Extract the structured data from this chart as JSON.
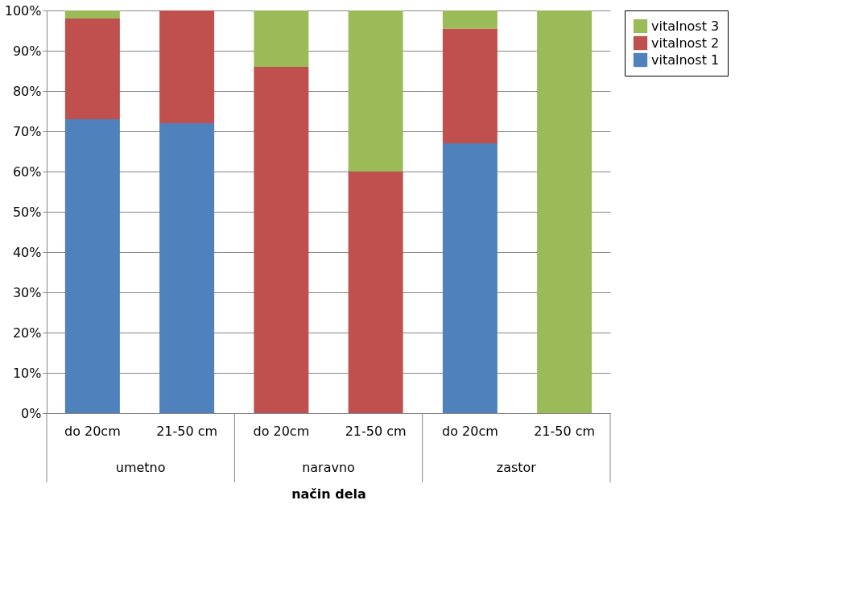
{
  "chart_data": {
    "type": "bar",
    "stacked": true,
    "xlabel": "način dela",
    "categories": [
      "do 20cm",
      "21-50 cm",
      "do 20cm",
      "21-50 cm",
      "do 20cm",
      "21-50 cm"
    ],
    "annotations": [
      "umetno",
      "naravno",
      "zastor"
    ],
    "series": [
      {
        "name": "vitalnost 1",
        "color": "#4f81bd",
        "values": [
          73,
          72,
          0,
          0,
          67,
          0
        ]
      },
      {
        "name": "vitalnost 2",
        "color": "#c0504d",
        "values": [
          25,
          28,
          86,
          60,
          28.5,
          0
        ]
      },
      {
        "name": "vitalnost 3",
        "color": "#9bbb59",
        "values": [
          2,
          0,
          14,
          40,
          4.5,
          100
        ]
      }
    ],
    "ylim": [
      0,
      100
    ],
    "yticks": [
      {
        "value": 0,
        "label": "0%"
      },
      {
        "value": 10,
        "label": "10%"
      },
      {
        "value": 20,
        "label": "20%"
      },
      {
        "value": 30,
        "label": "30%"
      },
      {
        "value": 40,
        "label": "40%"
      },
      {
        "value": 50,
        "label": "50%"
      },
      {
        "value": 60,
        "label": "60%"
      },
      {
        "value": 70,
        "label": "70%"
      },
      {
        "value": 80,
        "label": "80%"
      },
      {
        "value": 90,
        "label": "90%"
      },
      {
        "value": 100,
        "label": "100%"
      }
    ],
    "grid": "y",
    "legend": "right"
  }
}
